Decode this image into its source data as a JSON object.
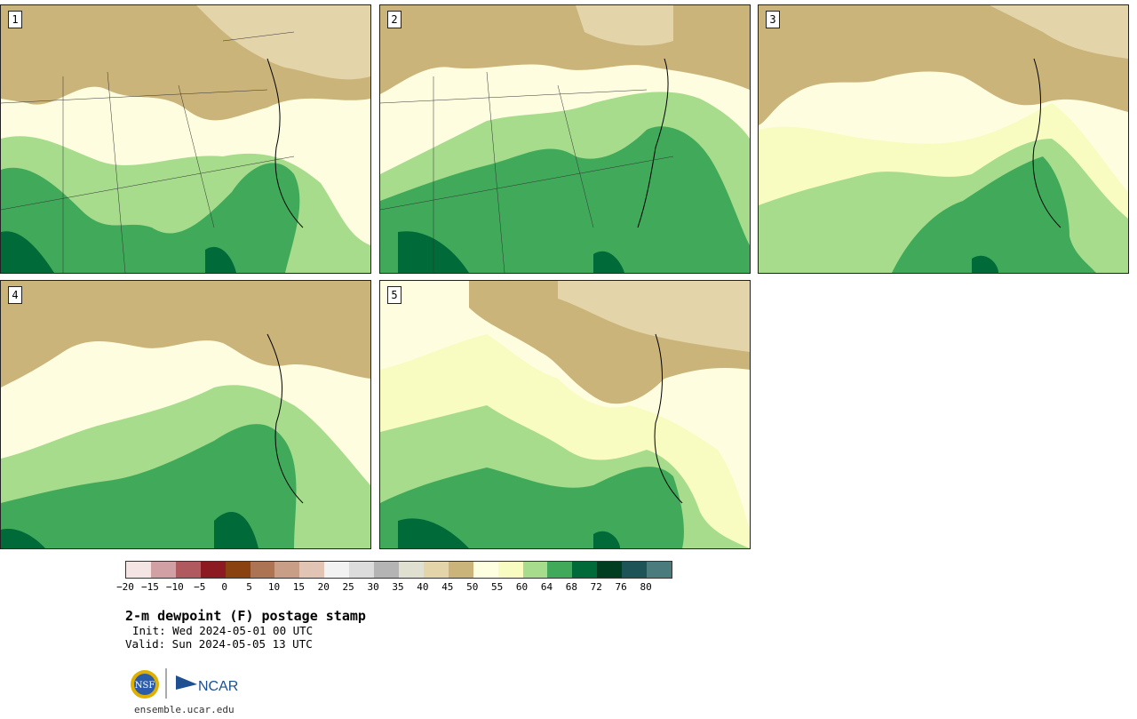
{
  "panels": [
    {
      "number": "1"
    },
    {
      "number": "2"
    },
    {
      "number": "3"
    },
    {
      "number": "4"
    },
    {
      "number": "5"
    }
  ],
  "colorbar": {
    "colors": [
      "#f4e4e4",
      "#d0a0a4",
      "#b05a60",
      "#8c1a22",
      "#8a4210",
      "#ac7452",
      "#c89e86",
      "#e2c4b4",
      "#f2f2f2",
      "#dcdcdc",
      "#b4b4b4",
      "#e0e0d0",
      "#e4d4aa",
      "#cab47a",
      "#fefee0",
      "#f8fcc0",
      "#a6dc8c",
      "#40aa5a",
      "#006a38",
      "#003e22",
      "#1c5458",
      "#4a7c7e"
    ],
    "tick_labels": [
      "−20",
      "−15",
      "−10",
      "−5",
      "0",
      "5",
      "10",
      "15",
      "20",
      "25",
      "30",
      "35",
      "40",
      "45",
      "50",
      "55",
      "60",
      "64",
      "68",
      "72",
      "76",
      "80"
    ]
  },
  "title": "2-m dewpoint (F) postage stamp",
  "init": "Init: Wed 2024-05-01 00 UTC",
  "valid": "Valid: Sun 2024-05-05 13 UTC",
  "logos": {
    "nsf": "NSF",
    "ncar": "NCAR"
  },
  "url": "ensemble.ucar.edu"
}
